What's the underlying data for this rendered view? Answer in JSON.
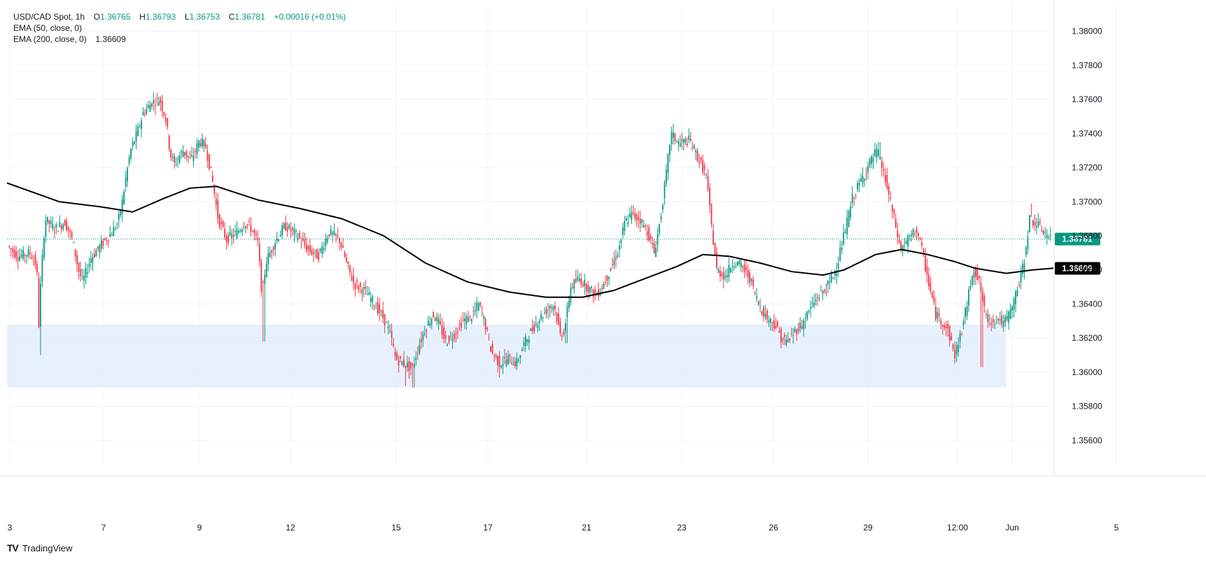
{
  "legend": {
    "symbol": "USD/CAD Spot",
    "interval": "1h",
    "open_label": "O",
    "open": "1.36765",
    "high_label": "H",
    "high": "1.36793",
    "low_label": "L",
    "low": "1.36753",
    "close_label": "C",
    "close": "1.36781",
    "change": "+0.00016 (+0.01%)",
    "ema50_label": "EMA (50, close, 0)",
    "ema200_label": "EMA (200, close, 0)",
    "ema200_value": "1.36609"
  },
  "brand": {
    "name": "TradingView",
    "logo": "TV"
  },
  "colors": {
    "up": "#089981",
    "down": "#f23645",
    "ema": "#000000",
    "zone": "#e3eefd",
    "grid": "#f0f3fa",
    "axis_text": "#131722",
    "current_price_label": "#089981",
    "ema_label": "#000000"
  },
  "chart_data": {
    "type": "candlestick",
    "title": "USD/CAD Spot",
    "interval": "1h",
    "x_ticks": [
      "3",
      "7",
      "9",
      "12",
      "15",
      "17",
      "21",
      "23",
      "26",
      "29",
      "12:00",
      "Jun",
      "5"
    ],
    "y_ticks": [
      "1.35600",
      "1.35800",
      "1.36000",
      "1.36200",
      "1.36400",
      "1.36600",
      "1.36800",
      "1.37000",
      "1.37200",
      "1.37400",
      "1.37600",
      "1.37800",
      "1.38000"
    ],
    "ylim": [
      1.3545,
      1.3815
    ],
    "current_price": 1.36781,
    "current_price_label": "1.36781",
    "ema200_value": 1.36609,
    "ema200_label": "1.36609",
    "grid": true,
    "zone": {
      "low": 1.3591,
      "high": 1.3628,
      "from": 0.0,
      "to": 0.955
    },
    "price_path": [
      [
        0.0,
        1.3674
      ],
      [
        0.01,
        1.3668
      ],
      [
        0.022,
        1.367
      ],
      [
        0.028,
        1.3662
      ],
      [
        0.03,
        1.3628
      ],
      [
        0.032,
        1.3655
      ],
      [
        0.036,
        1.369
      ],
      [
        0.045,
        1.3684
      ],
      [
        0.055,
        1.3688
      ],
      [
        0.062,
        1.3678
      ],
      [
        0.068,
        1.366
      ],
      [
        0.072,
        1.3653
      ],
      [
        0.08,
        1.3667
      ],
      [
        0.09,
        1.3675
      ],
      [
        0.1,
        1.3682
      ],
      [
        0.106,
        1.3688
      ],
      [
        0.11,
        1.37
      ],
      [
        0.114,
        1.3716
      ],
      [
        0.118,
        1.373
      ],
      [
        0.124,
        1.374
      ],
      [
        0.13,
        1.3752
      ],
      [
        0.138,
        1.3758
      ],
      [
        0.146,
        1.376
      ],
      [
        0.152,
        1.3748
      ],
      [
        0.156,
        1.3728
      ],
      [
        0.16,
        1.3722
      ],
      [
        0.168,
        1.373
      ],
      [
        0.176,
        1.3724
      ],
      [
        0.184,
        1.3736
      ],
      [
        0.19,
        1.3732
      ],
      [
        0.196,
        1.3714
      ],
      [
        0.202,
        1.369
      ],
      [
        0.21,
        1.3678
      ],
      [
        0.22,
        1.3682
      ],
      [
        0.228,
        1.3688
      ],
      [
        0.234,
        1.3684
      ],
      [
        0.24,
        1.3676
      ],
      [
        0.244,
        1.3645
      ],
      [
        0.248,
        1.3665
      ],
      [
        0.256,
        1.3676
      ],
      [
        0.266,
        1.3686
      ],
      [
        0.278,
        1.368
      ],
      [
        0.288,
        1.3672
      ],
      [
        0.298,
        1.3668
      ],
      [
        0.308,
        1.3682
      ],
      [
        0.318,
        1.3678
      ],
      [
        0.326,
        1.3662
      ],
      [
        0.332,
        1.3652
      ],
      [
        0.342,
        1.3648
      ],
      [
        0.352,
        1.364
      ],
      [
        0.362,
        1.363
      ],
      [
        0.368,
        1.362
      ],
      [
        0.372,
        1.3608
      ],
      [
        0.38,
        1.3605
      ],
      [
        0.388,
        1.3602
      ],
      [
        0.394,
        1.3615
      ],
      [
        0.4,
        1.3625
      ],
      [
        0.408,
        1.3634
      ],
      [
        0.414,
        1.3628
      ],
      [
        0.42,
        1.3618
      ],
      [
        0.428,
        1.3622
      ],
      [
        0.436,
        1.363
      ],
      [
        0.444,
        1.3632
      ],
      [
        0.452,
        1.364
      ],
      [
        0.458,
        1.3628
      ],
      [
        0.464,
        1.3612
      ],
      [
        0.472,
        1.3605
      ],
      [
        0.48,
        1.3608
      ],
      [
        0.488,
        1.3605
      ],
      [
        0.494,
        1.3615
      ],
      [
        0.5,
        1.3622
      ],
      [
        0.508,
        1.363
      ],
      [
        0.516,
        1.3636
      ],
      [
        0.524,
        1.364
      ],
      [
        0.53,
        1.3622
      ],
      [
        0.534,
        1.3625
      ],
      [
        0.54,
        1.365
      ],
      [
        0.548,
        1.3655
      ],
      [
        0.556,
        1.365
      ],
      [
        0.564,
        1.3645
      ],
      [
        0.57,
        1.365
      ],
      [
        0.578,
        1.366
      ],
      [
        0.586,
        1.3672
      ],
      [
        0.592,
        1.3688
      ],
      [
        0.598,
        1.3692
      ],
      [
        0.606,
        1.369
      ],
      [
        0.614,
        1.3682
      ],
      [
        0.62,
        1.367
      ],
      [
        0.626,
        1.369
      ],
      [
        0.632,
        1.3718
      ],
      [
        0.636,
        1.374
      ],
      [
        0.644,
        1.3734
      ],
      [
        0.654,
        1.3736
      ],
      [
        0.662,
        1.3726
      ],
      [
        0.67,
        1.3715
      ],
      [
        0.676,
        1.368
      ],
      [
        0.68,
        1.366
      ],
      [
        0.688,
        1.3656
      ],
      [
        0.696,
        1.3665
      ],
      [
        0.704,
        1.3662
      ],
      [
        0.712,
        1.3655
      ],
      [
        0.72,
        1.364
      ],
      [
        0.728,
        1.3632
      ],
      [
        0.736,
        1.3628
      ],
      [
        0.742,
        1.362
      ],
      [
        0.748,
        1.3618
      ],
      [
        0.756,
        1.3625
      ],
      [
        0.762,
        1.3628
      ],
      [
        0.77,
        1.3638
      ],
      [
        0.778,
        1.3645
      ],
      [
        0.786,
        1.365
      ],
      [
        0.794,
        1.366
      ],
      [
        0.802,
        1.368
      ],
      [
        0.81,
        1.3702
      ],
      [
        0.818,
        1.3712
      ],
      [
        0.826,
        1.3722
      ],
      [
        0.834,
        1.373
      ],
      [
        0.842,
        1.3712
      ],
      [
        0.85,
        1.369
      ],
      [
        0.856,
        1.3672
      ],
      [
        0.864,
        1.3678
      ],
      [
        0.872,
        1.3684
      ],
      [
        0.878,
        1.3668
      ],
      [
        0.884,
        1.365
      ],
      [
        0.89,
        1.3634
      ],
      [
        0.896,
        1.363
      ],
      [
        0.902,
        1.3624
      ],
      [
        0.908,
        1.361
      ],
      [
        0.914,
        1.3622
      ],
      [
        0.92,
        1.364
      ],
      [
        0.926,
        1.3662
      ],
      [
        0.932,
        1.3652
      ],
      [
        0.938,
        1.3632
      ],
      [
        0.942,
        1.363
      ],
      [
        0.95,
        1.3632
      ],
      [
        0.955,
        1.3628
      ],
      [
        0.962,
        1.3636
      ],
      [
        0.968,
        1.3648
      ],
      [
        0.974,
        1.3662
      ],
      [
        0.98,
        1.369
      ],
      [
        0.988,
        1.3686
      ],
      [
        0.994,
        1.3682
      ],
      [
        1.0,
        1.3678
      ]
    ],
    "spikes": [
      [
        0.03,
        1.361
      ],
      [
        0.244,
        1.3618
      ],
      [
        0.38,
        1.3592
      ],
      [
        0.388,
        1.3591
      ],
      [
        0.47,
        1.3597
      ],
      [
        0.534,
        1.3617
      ],
      [
        0.598,
        1.3698
      ],
      [
        0.636,
        1.3744
      ],
      [
        0.742,
        1.3616
      ],
      [
        0.834,
        1.3735
      ],
      [
        0.908,
        1.3606
      ],
      [
        0.932,
        1.3603
      ],
      [
        0.98,
        1.3699
      ]
    ],
    "ema200_path": [
      [
        0.0,
        1.3711
      ],
      [
        0.05,
        1.37
      ],
      [
        0.09,
        1.3697
      ],
      [
        0.12,
        1.3694
      ],
      [
        0.15,
        1.3702
      ],
      [
        0.175,
        1.3708
      ],
      [
        0.2,
        1.3709
      ],
      [
        0.24,
        1.3701
      ],
      [
        0.28,
        1.3696
      ],
      [
        0.32,
        1.369
      ],
      [
        0.36,
        1.368
      ],
      [
        0.4,
        1.3664
      ],
      [
        0.44,
        1.3653
      ],
      [
        0.48,
        1.3647
      ],
      [
        0.515,
        1.3644
      ],
      [
        0.55,
        1.3644
      ],
      [
        0.58,
        1.3648
      ],
      [
        0.61,
        1.3655
      ],
      [
        0.64,
        1.3662
      ],
      [
        0.665,
        1.3669
      ],
      [
        0.69,
        1.3668
      ],
      [
        0.72,
        1.3664
      ],
      [
        0.75,
        1.3659
      ],
      [
        0.78,
        1.3657
      ],
      [
        0.8,
        1.366
      ],
      [
        0.83,
        1.3669
      ],
      [
        0.855,
        1.3672
      ],
      [
        0.88,
        1.3669
      ],
      [
        0.905,
        1.3665
      ],
      [
        0.925,
        1.3661
      ],
      [
        0.955,
        1.3658
      ],
      [
        0.98,
        1.366
      ],
      [
        1.0,
        1.3661
      ]
    ]
  }
}
